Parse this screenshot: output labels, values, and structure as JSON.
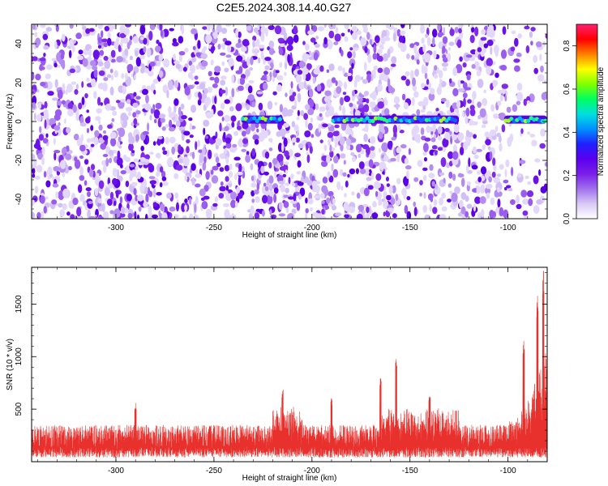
{
  "title": "C2E5.2024.308.14.40.G27",
  "colors": {
    "snr_line": "#e8302c",
    "colormap": [
      "#ffffff",
      "#d9c9f5",
      "#a070ee",
      "#7a1ee8",
      "#5a00f0",
      "#2020ff",
      "#0090ff",
      "#00e0e0",
      "#00ff60",
      "#80ff00",
      "#ffff00",
      "#ff8000",
      "#ff0000",
      "#ff2070"
    ]
  },
  "chart_data": [
    {
      "type": "heatmap",
      "xlabel": "Height of straight line (km)",
      "ylabel": "Frequency (Hz)",
      "xlim": [
        -343,
        -80
      ],
      "ylim": [
        -50,
        50
      ],
      "x_ticks": [
        -300,
        -250,
        -200,
        -150,
        -100
      ],
      "x_tick_labels": [
        "-300",
        "-250",
        "-200",
        "-150",
        "-100"
      ],
      "y_ticks": [
        -40,
        -20,
        0,
        20,
        40
      ],
      "y_tick_labels": [
        "-40",
        "-20",
        "0",
        "20",
        "40"
      ],
      "signal_band": {
        "frequency_hz": 1,
        "segments": [
          [
            -236,
            -215
          ],
          [
            -190,
            -125
          ],
          [
            -102,
            -80
          ]
        ]
      },
      "colorbar": {
        "label": "Normalized spectral amplitude",
        "range": [
          0,
          0.9
        ],
        "ticks": [
          0.0,
          0.2,
          0.4,
          0.6,
          0.8
        ],
        "tick_labels": [
          "0.0",
          "0.2",
          "0.4",
          "0.6",
          "0.8"
        ]
      }
    },
    {
      "type": "line",
      "xlabel": "Height of straight line (km)",
      "ylabel": "SNR (10 * v/v)",
      "xlim": [
        -343,
        -80
      ],
      "ylim": [
        0,
        1850
      ],
      "x_ticks": [
        -300,
        -250,
        -200,
        -150,
        -100
      ],
      "x_tick_labels": [
        "-300",
        "-250",
        "-200",
        "-150",
        "-100"
      ],
      "y_ticks": [
        500,
        1000,
        1500
      ],
      "y_tick_labels": [
        "500",
        "1000",
        "1500"
      ],
      "baseline_snr": [
        100,
        350
      ],
      "peaks": [
        {
          "x": -290,
          "y": 580
        },
        {
          "x": -215,
          "y": 700
        },
        {
          "x": -190,
          "y": 610
        },
        {
          "x": -165,
          "y": 820
        },
        {
          "x": -157,
          "y": 1030
        },
        {
          "x": -140,
          "y": 620
        },
        {
          "x": -92,
          "y": 1150
        },
        {
          "x": -85,
          "y": 1620
        },
        {
          "x": -82,
          "y": 1820
        }
      ]
    }
  ]
}
